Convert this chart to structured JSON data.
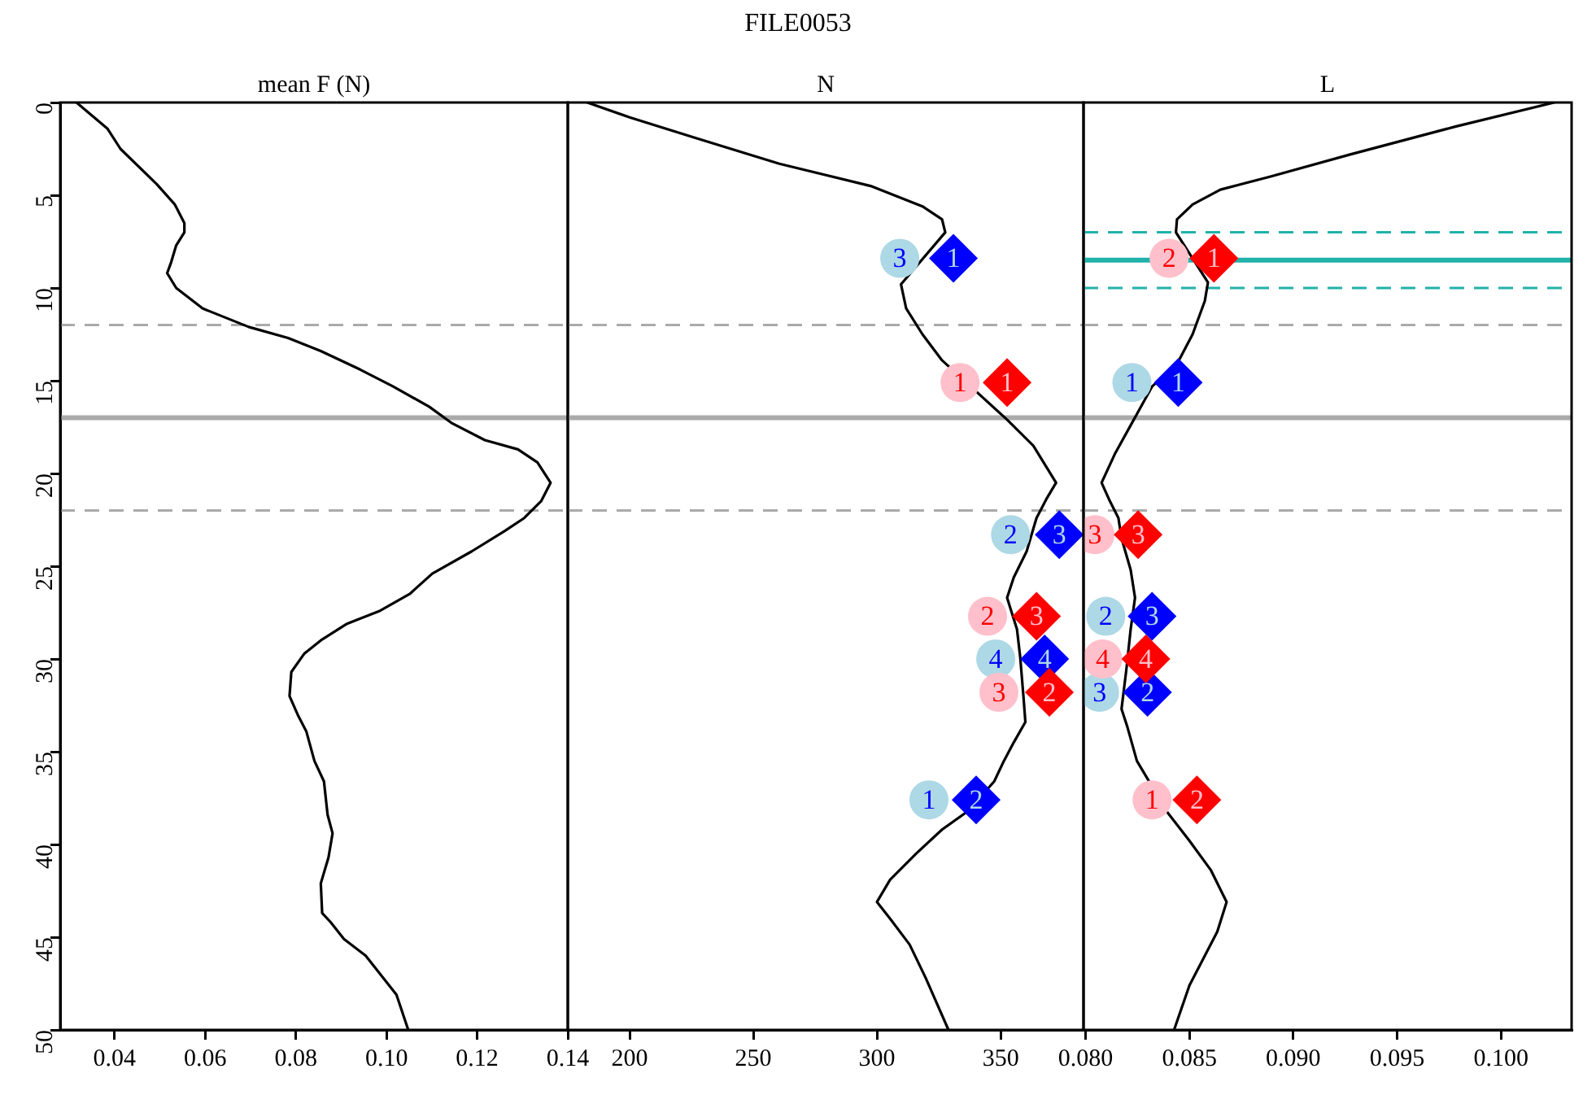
{
  "chart_data": [
    {
      "type": "line",
      "xlabel": "mean F (N)",
      "xlim": [
        0.028,
        0.14
      ],
      "xticks": [
        {
          "value": 0.04,
          "label": "0.04"
        },
        {
          "value": 0.06,
          "label": "0.06"
        },
        {
          "value": 0.08,
          "label": "0.08"
        },
        {
          "value": 0.1,
          "label": "0.10"
        },
        {
          "value": 0.12,
          "label": "0.12"
        },
        {
          "value": 0.14,
          "label": "0.14"
        }
      ],
      "ylim": [
        50,
        0
      ],
      "yticks": [
        0,
        5,
        10,
        15,
        20,
        25,
        30,
        35,
        40,
        45,
        50
      ],
      "grid": false,
      "legend": false,
      "ref_lines": [
        {
          "axis": "y",
          "value": 12,
          "color": "#aaaaaa",
          "line_style": "dashed"
        },
        {
          "axis": "y",
          "value": 17,
          "color": "#aaaaaa",
          "line_style": "solid"
        },
        {
          "axis": "y",
          "value": 22,
          "color": "#aaaaaa",
          "line_style": "dashed"
        }
      ],
      "series": [
        {
          "color": "#000000",
          "marker": "none",
          "x": [
            0.0316,
            0.0384,
            0.0413,
            0.0493,
            0.0533,
            0.0554,
            0.0554,
            0.0536,
            0.0525,
            0.0516,
            0.0536,
            0.0594,
            0.0696,
            0.0783,
            0.0855,
            0.0942,
            0.1014,
            0.1094,
            0.1145,
            0.1217,
            0.129,
            0.1333,
            0.1362,
            0.1341,
            0.1304,
            0.1261,
            0.1188,
            0.1101,
            0.1051,
            0.0986,
            0.0913,
            0.0855,
            0.0819,
            0.079,
            0.0786,
            0.0804,
            0.0823,
            0.0841,
            0.0862,
            0.087,
            0.0881,
            0.0872,
            0.0855,
            0.0858,
            0.0877,
            0.0906,
            0.0954,
            0.0993,
            0.1022,
            0.1048
          ],
          "values": [
            0,
            1.4,
            2.5,
            4.4,
            5.5,
            6.5,
            7,
            7.7,
            8.6,
            9.2,
            10,
            11.1,
            12.1,
            12.7,
            13.4,
            14.4,
            15.3,
            16.4,
            17.3,
            18.2,
            18.7,
            19.4,
            20.5,
            21.5,
            22.4,
            23.1,
            24.2,
            25.4,
            26.5,
            27.4,
            28.1,
            29,
            29.7,
            30.7,
            32,
            33,
            33.9,
            35.5,
            36.6,
            38.4,
            39.4,
            40.7,
            42.1,
            43.7,
            44.2,
            45.1,
            46,
            47.2,
            48.1,
            50
          ]
        }
      ]
    },
    {
      "type": "line",
      "title": "FILE0053",
      "xlabel": "N",
      "xlim": [
        175,
        383.5
      ],
      "xticks": [
        200,
        250,
        300,
        350
      ],
      "ylim": [
        50,
        0
      ],
      "tick_labels": "x",
      "grid": false,
      "legend": false,
      "ref_lines": [
        {
          "axis": "y",
          "value": 12,
          "color": "#aaaaaa",
          "line_style": "dashed"
        },
        {
          "axis": "y",
          "value": 17,
          "color": "#aaaaaa",
          "line_style": "solid"
        },
        {
          "axis": "y",
          "value": 22,
          "color": "#aaaaaa",
          "line_style": "dashed"
        }
      ],
      "annotations": [
        {
          "text": "3",
          "x": 309.2,
          "y": 8.4
        },
        {
          "text": "2",
          "x": 354,
          "y": 23.3
        },
        {
          "text": "4",
          "x": 348,
          "y": 30
        },
        {
          "text": "1",
          "x": 321,
          "y": 37.6
        },
        {
          "text": "1",
          "x": 330.9,
          "y": 8.4
        },
        {
          "text": "3",
          "x": 373.7,
          "y": 23.3
        },
        {
          "text": "4",
          "x": 367.8,
          "y": 30
        },
        {
          "text": "2",
          "x": 340.1,
          "y": 37.6
        },
        {
          "text": "1",
          "x": 333.6,
          "y": 15.1
        },
        {
          "text": "2",
          "x": 344.7,
          "y": 27.7
        },
        {
          "text": "3",
          "x": 349.3,
          "y": 31.8
        },
        {
          "text": "1",
          "x": 352.6,
          "y": 15.1
        },
        {
          "text": "3",
          "x": 364.5,
          "y": 27.7
        },
        {
          "text": "2",
          "x": 369.7,
          "y": 31.8
        }
      ],
      "series": [
        {
          "color": "#000000",
          "marker": "none",
          "x": [
            182.9,
            200,
            226.3,
            260.5,
            297.4,
            318.4,
            326.3,
            327.6,
            309.7,
            311.8,
            318.4,
            326.3,
            352.6,
            363.2,
            372.4,
            368.4,
            364.5,
            360.5,
            355.3,
            352.6,
            356.6,
            357.9,
            359.2,
            360,
            355.3,
            351.3,
            347.4,
            336.8,
            326.3,
            315.8,
            305.3,
            300,
            305.3,
            313.2,
            319.7,
            328.9
          ],
          "values": [
            0,
            0.8,
            1.9,
            3.3,
            4.5,
            5.6,
            6.3,
            7,
            9.8,
            11.1,
            12.5,
            13.9,
            17.1,
            18.5,
            20.5,
            21.4,
            22.4,
            24.2,
            25.6,
            26.7,
            28.4,
            29.9,
            32,
            33.4,
            34.5,
            35.5,
            36.6,
            38.2,
            39.2,
            40.5,
            41.9,
            43.1,
            44,
            45.4,
            47.2,
            50
          ]
        },
        {
          "type": "scatter",
          "color": "#add8e6",
          "marker": "circle",
          "x": [
            309.2,
            354,
            348,
            321
          ],
          "values": [
            8.4,
            23.3,
            30,
            37.6
          ]
        },
        {
          "type": "scatter",
          "color": "#0000ff",
          "marker": "diamond",
          "x": [
            330.9,
            373.7,
            367.8,
            340.1
          ],
          "values": [
            8.4,
            23.3,
            30,
            37.6
          ]
        },
        {
          "type": "scatter",
          "color": "#ffc0cb",
          "marker": "circle",
          "x": [
            333.6,
            344.7,
            349.3
          ],
          "values": [
            15.1,
            27.7,
            31.8
          ]
        },
        {
          "type": "scatter",
          "color": "#ff0000",
          "marker": "diamond",
          "x": [
            352.6,
            364.5,
            369.7
          ],
          "values": [
            15.1,
            27.7,
            31.8
          ]
        }
      ]
    },
    {
      "type": "line",
      "xlabel": "L",
      "xlim": [
        0.0799,
        0.1034
      ],
      "xticks": [
        {
          "value": 0.08,
          "label": "0.080"
        },
        {
          "value": 0.085,
          "label": "0.085"
        },
        {
          "value": 0.09,
          "label": "0.090"
        },
        {
          "value": 0.095,
          "label": "0.095"
        },
        {
          "value": 0.1,
          "label": "0.100"
        }
      ],
      "ylim": [
        50,
        0
      ],
      "tick_labels": "x",
      "grid": false,
      "legend": false,
      "ref_lines": [
        {
          "axis": "y",
          "value": 12,
          "color": "#aaaaaa",
          "line_style": "dashed"
        },
        {
          "axis": "y",
          "value": 17,
          "color": "#aaaaaa",
          "line_style": "solid"
        },
        {
          "axis": "y",
          "value": 22,
          "color": "#aaaaaa",
          "line_style": "dashed"
        },
        {
          "axis": "y",
          "value": 7,
          "color": "#20b2aa",
          "line_style": "dashed"
        },
        {
          "axis": "y",
          "value": 8.5,
          "color": "#20b2aa",
          "line_style": "solid"
        },
        {
          "axis": "y",
          "value": 10,
          "color": "#20b2aa",
          "line_style": "dashed"
        }
      ],
      "annotations": [
        {
          "text": "1",
          "x": 0.08223,
          "y": 15.1
        },
        {
          "text": "2",
          "x": 0.08097,
          "y": 27.7
        },
        {
          "text": "3",
          "x": 0.08067,
          "y": 31.8
        },
        {
          "text": "1",
          "x": 0.08446,
          "y": 15.1
        },
        {
          "text": "3",
          "x": 0.0832,
          "y": 27.7
        },
        {
          "text": "2",
          "x": 0.08298,
          "y": 31.8
        },
        {
          "text": "2",
          "x": 0.08402,
          "y": 8.4
        },
        {
          "text": "3",
          "x": 0.08045,
          "y": 23.3
        },
        {
          "text": "4",
          "x": 0.08082,
          "y": 30
        },
        {
          "text": "1",
          "x": 0.0832,
          "y": 37.6
        },
        {
          "text": "1",
          "x": 0.08618,
          "y": 8.4
        },
        {
          "text": "3",
          "x": 0.08253,
          "y": 23.3
        },
        {
          "text": "4",
          "x": 0.0829,
          "y": 30
        },
        {
          "text": "2",
          "x": 0.08536,
          "y": 37.6
        }
      ],
      "series": [
        {
          "color": "#000000",
          "marker": "none",
          "x": [
            0.10256,
            0.0978,
            0.09274,
            0.08887,
            0.08649,
            0.08515,
            0.0844,
            0.08435,
            0.08589,
            0.08574,
            0.08515,
            0.0844,
            0.08321,
            0.08232,
            0.08143,
            0.08077,
            0.08113,
            0.08158,
            0.08173,
            0.08217,
            0.08238,
            0.08217,
            0.08196,
            0.08173,
            0.08202,
            0.08247,
            0.08396,
            0.085,
            0.08604,
            0.08679,
            0.08634,
            0.0856,
            0.085,
            0.08426
          ],
          "values": [
            0,
            1.3,
            2.8,
            4,
            4.7,
            5.5,
            6.3,
            7,
            9.7,
            10.7,
            12.5,
            14.1,
            15.3,
            17.1,
            18.9,
            20.5,
            21.4,
            22.4,
            23.5,
            25.2,
            26.7,
            28.4,
            30.6,
            32.7,
            33.7,
            35.5,
            38.3,
            39.8,
            41.4,
            43.1,
            44.7,
            46.3,
            47.6,
            50
          ]
        },
        {
          "type": "scatter",
          "color": "#add8e6",
          "marker": "circle",
          "x": [
            0.08223,
            0.08097,
            0.08067
          ],
          "values": [
            15.1,
            27.7,
            31.8
          ]
        },
        {
          "type": "scatter",
          "color": "#0000ff",
          "marker": "diamond",
          "x": [
            0.08446,
            0.0832,
            0.08298
          ],
          "values": [
            15.1,
            27.7,
            31.8
          ]
        },
        {
          "type": "scatter",
          "color": "#ffc0cb",
          "marker": "circle",
          "x": [
            0.08402,
            0.08045,
            0.08082,
            0.0832
          ],
          "values": [
            8.4,
            23.3,
            30,
            37.6
          ]
        },
        {
          "type": "scatter",
          "color": "#ff0000",
          "marker": "diamond",
          "x": [
            0.08618,
            0.08253,
            0.0829,
            0.08536
          ],
          "values": [
            8.4,
            23.3,
            30,
            37.6
          ]
        }
      ]
    }
  ]
}
